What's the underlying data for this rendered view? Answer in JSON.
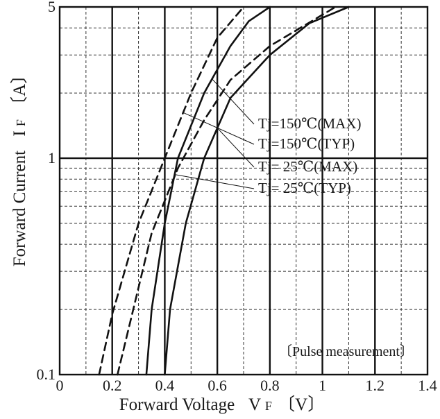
{
  "chart_data": {
    "type": "line",
    "title": "",
    "xlabel": "Forward Voltage",
    "xlabel_symbol": "V",
    "xlabel_sub": "F",
    "xlabel_unit": "〔V〕",
    "ylabel": "Forward Current",
    "ylabel_symbol": "I",
    "ylabel_sub": "F",
    "ylabel_unit": "〔A〕",
    "xlim": [
      0,
      1.4
    ],
    "ylim": [
      0.1,
      5
    ],
    "yscale": "log",
    "x_ticks": [
      0,
      0.2,
      0.4,
      0.6,
      0.8,
      1,
      1.2,
      1.4
    ],
    "x_tick_labels": [
      "0",
      "0.2",
      "0.4",
      "0.6",
      "0.8",
      "1",
      "1.2",
      "1.4"
    ],
    "y_ticks": [
      0.1,
      1,
      5
    ],
    "y_tick_labels": [
      "0.1",
      "1",
      "5"
    ],
    "grid": true,
    "note": "〔Pulse measurement〕",
    "series": [
      {
        "name": "Tj=150℃(MAX)",
        "style": "solid",
        "points": [
          [
            0.33,
            0.1
          ],
          [
            0.35,
            0.2
          ],
          [
            0.4,
            0.5
          ],
          [
            0.45,
            1.0
          ],
          [
            0.55,
            2.0
          ],
          [
            0.65,
            3.3
          ],
          [
            0.72,
            4.3
          ],
          [
            0.8,
            5.0
          ]
        ]
      },
      {
        "name": "Tj=150℃(TYP)",
        "style": "dashed",
        "points": [
          [
            0.15,
            0.1
          ],
          [
            0.2,
            0.19
          ],
          [
            0.3,
            0.5
          ],
          [
            0.4,
            1.0
          ],
          [
            0.5,
            2.0
          ],
          [
            0.6,
            3.6
          ],
          [
            0.7,
            5.0
          ]
        ]
      },
      {
        "name": "Tj= 25℃(MAX)",
        "style": "solid",
        "points": [
          [
            0.4,
            0.1
          ],
          [
            0.42,
            0.2
          ],
          [
            0.48,
            0.5
          ],
          [
            0.55,
            1.0
          ],
          [
            0.65,
            1.9
          ],
          [
            0.8,
            3.0
          ],
          [
            0.95,
            4.2
          ],
          [
            1.1,
            5.0
          ]
        ]
      },
      {
        "name": "Tj= 25℃(TYP)",
        "style": "dashed",
        "points": [
          [
            0.22,
            0.1
          ],
          [
            0.28,
            0.2
          ],
          [
            0.35,
            0.45
          ],
          [
            0.45,
            0.9
          ],
          [
            0.55,
            1.5
          ],
          [
            0.65,
            2.3
          ],
          [
            0.8,
            3.3
          ],
          [
            1.0,
            4.6
          ],
          [
            1.05,
            5.0
          ]
        ]
      }
    ],
    "annotations": [
      {
        "series": 0,
        "text": "Tj=150℃(MAX)",
        "at_x": 0.58
      },
      {
        "series": 1,
        "text": "Tj=150℃(TYP)",
        "at_x": 0.47
      },
      {
        "series": 2,
        "text": "Tj= 25℃(MAX)",
        "at_x": 0.6
      },
      {
        "series": 3,
        "text": "Tj= 25℃(TYP)",
        "at_x": 0.44
      }
    ]
  }
}
